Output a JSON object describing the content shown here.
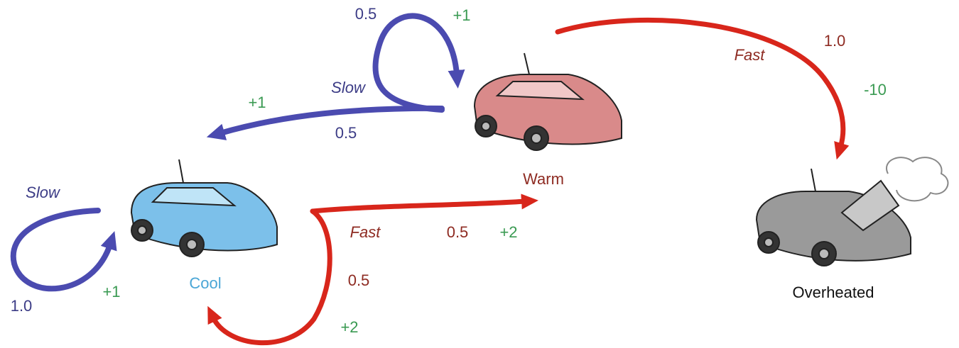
{
  "nodes": [
    {
      "label": "Cool"
    },
    {
      "label": "Warm"
    },
    {
      "label": "Overheated"
    }
  ],
  "actions": [
    {
      "label": "Slow",
      "outcomes": [
        {
          "probability": "1.0",
          "reward": "+1"
        }
      ]
    },
    {
      "label": "Fast",
      "outcomes": [
        {
          "probability": "0.5",
          "reward": "+2"
        },
        {
          "probability": "0.5",
          "reward": "+2"
        }
      ]
    },
    {
      "label": "Slow",
      "outcomes": [
        {
          "probability": "0.5",
          "reward": "+1"
        },
        {
          "probability": "0.5",
          "reward": "+1"
        }
      ]
    },
    {
      "label": "Fast",
      "outcomes": [
        {
          "probability": "1.0",
          "reward": "-10"
        }
      ]
    }
  ]
}
